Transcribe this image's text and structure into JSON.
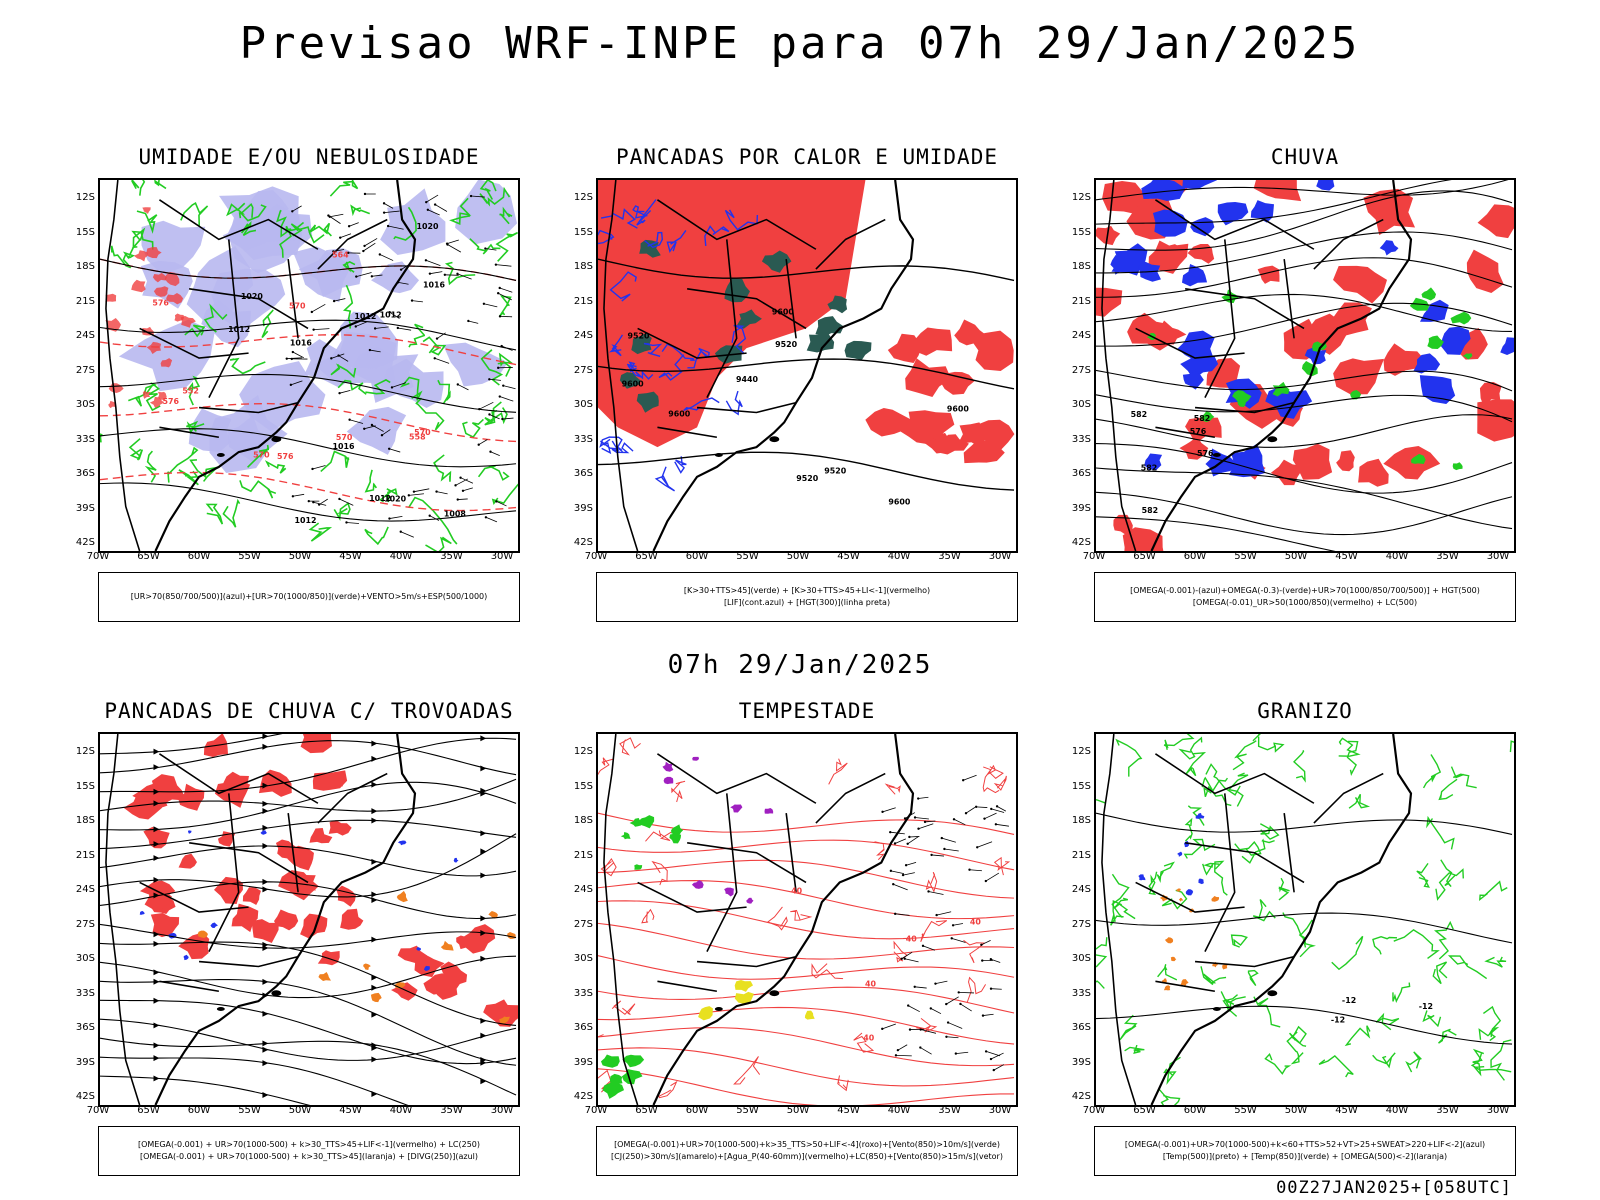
{
  "title": "Previsao WRF-INPE  para 07h 29/Jan/2025",
  "mid_title": "07h 29/Jan/2025",
  "footer": "00Z27JAN2025+[058UTC]",
  "lat_labels": [
    "12S",
    "15S",
    "18S",
    "21S",
    "24S",
    "27S",
    "30S",
    "33S",
    "36S",
    "39S",
    "42S"
  ],
  "lon_labels": [
    "70W",
    "65W",
    "60W",
    "55W",
    "50W",
    "45W",
    "40W",
    "35W",
    "30W"
  ],
  "panels": [
    {
      "title": "UMIDADE E/OU NEBULOSIDADE",
      "legend": [
        "[UR>70(850/700/500)](azul)+[UR>70(1000/850)](verde)+VENTO>5m/s+ESP(500/1000)"
      ],
      "labels": [
        "1012",
        "1012",
        "1012",
        "1008",
        "1012",
        "1012",
        "1016",
        "1016",
        "1016",
        "1020",
        "1020",
        "1020",
        "576",
        "576",
        "576",
        "570",
        "570",
        "570",
        "570",
        "564",
        "558",
        "552"
      ]
    },
    {
      "title": "PANCADAS POR CALOR E UMIDADE",
      "legend": [
        "[K>30+TTS>45](verde) + [K>30+TTS>45+LI<-1](vermelho)",
        "[LIF](cont.azul) + [HGT(300)](linha preta)"
      ],
      "labels": [
        "9600",
        "9600",
        "9600",
        "9600",
        "9600",
        "9520",
        "9520",
        "9520",
        "9440",
        "9520"
      ]
    },
    {
      "title": "CHUVA",
      "legend": [
        "[OMEGA(-0.001)-(azul)+OMEGA(-0.3)-(verde)+UR>70(1000/850/700/500)] + HGT(500)",
        "[OMEGA(-0.01)_UR>50(1000/850)(vermelho) + LC(500)"
      ],
      "labels": [
        "582",
        "582",
        "582",
        "576",
        "576",
        "582"
      ]
    },
    {
      "title": "PANCADAS DE CHUVA C/ TROVOADAS",
      "legend": [
        "[OMEGA(-0.001) + UR>70(1000-500) + k>30_TTS>45+LIF<-1](vermelho) + LC(250)",
        "[OMEGA(-0.001) + UR>70(1000-500) + k>30_TTS>45](laranja) + [DIVG(250)](azul)"
      ],
      "labels": []
    },
    {
      "title": "TEMPESTADE",
      "legend": [
        "[OMEGA(-0.001)+UR>70(1000-500)+k>35_TTS>50+LIF<-4](roxo)+[Vento(850)>10m/s](verde)",
        "[CJ(250)>30m/s](amarelo)+[Agua_P(40-60mm)](vermelho)+LC(850)+[Vento(850)>15m/s](vetor)"
      ],
      "labels": [
        "40",
        "40",
        "40",
        "40",
        "40"
      ]
    },
    {
      "title": "GRANIZO",
      "legend": [
        "[OMEGA(-0.001)+UR>70(1000-500)+k<60+TTS>52+VT>25+SWEAT>220+LIF<-2](azul)",
        "[Temp(500)](preto) + [Temp(850)](verde) + [OMEGA(500)<-2](laranja)"
      ],
      "labels": [
        "-12",
        "-12",
        "-12"
      ]
    }
  ],
  "colors": {
    "red": "#f04040",
    "blue": "#2233ee",
    "green": "#22cc22",
    "lavender": "#b8b8f0",
    "dkgreen": "#2a5a52",
    "yellow": "#e8e020",
    "purple": "#a020c0",
    "orange": "#f08020"
  }
}
